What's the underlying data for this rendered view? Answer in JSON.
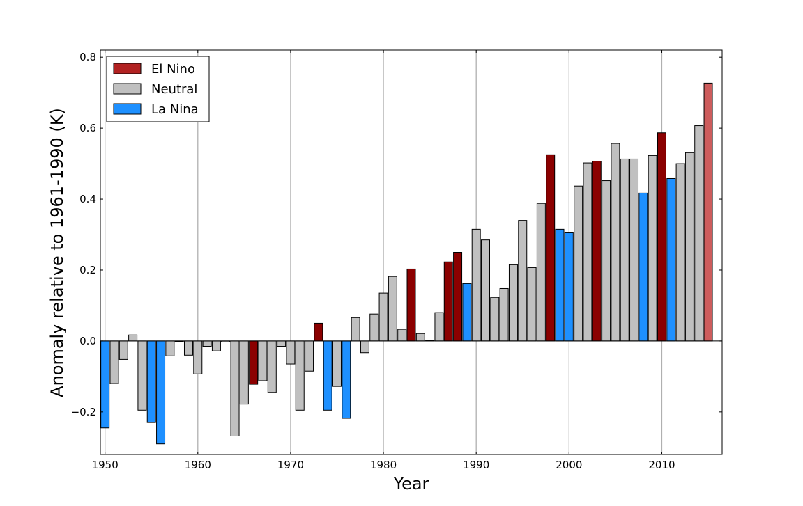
{
  "chart_data": {
    "type": "bar",
    "title": "",
    "xlabel": "Year",
    "ylabel": "Anomaly relative to 1961-1990 (K)",
    "xlim": [
      1949.5,
      2016.5
    ],
    "ylim": [
      -0.32,
      0.82
    ],
    "x_ticks": [
      1950,
      1960,
      1970,
      1980,
      1990,
      2000,
      2010
    ],
    "y_ticks": [
      -0.2,
      0.0,
      0.2,
      0.4,
      0.6,
      0.8
    ],
    "y_tick_labels": [
      "−0.2",
      "0.0",
      "0.2",
      "0.4",
      "0.6",
      "0.8"
    ],
    "x_tick_labels": [
      "1950",
      "1960",
      "1970",
      "1980",
      "1990",
      "2000",
      "2010"
    ],
    "grid": "vertical at x ticks",
    "legend_position": "top-left",
    "legend": [
      {
        "key": "el_nino",
        "label": "El Nino",
        "color": "#b22222"
      },
      {
        "key": "neutral",
        "label": "Neutral",
        "color": "#c0c0c0"
      },
      {
        "key": "la_nina",
        "label": "La Nina",
        "color": "#1e90ff"
      }
    ],
    "colors": {
      "el_nino": "#8b0000",
      "neutral": "#c0c0c0",
      "la_nina": "#1e90ff",
      "highlight": "#cd5c5c"
    },
    "bars": [
      {
        "year": 1950,
        "value": -0.245,
        "phase": "la_nina"
      },
      {
        "year": 1951,
        "value": -0.12,
        "phase": "neutral"
      },
      {
        "year": 1952,
        "value": -0.052,
        "phase": "neutral"
      },
      {
        "year": 1953,
        "value": 0.017,
        "phase": "neutral"
      },
      {
        "year": 1954,
        "value": -0.195,
        "phase": "neutral"
      },
      {
        "year": 1955,
        "value": -0.23,
        "phase": "la_nina"
      },
      {
        "year": 1956,
        "value": -0.29,
        "phase": "la_nina"
      },
      {
        "year": 1957,
        "value": -0.042,
        "phase": "neutral"
      },
      {
        "year": 1958,
        "value": -0.002,
        "phase": "neutral"
      },
      {
        "year": 1959,
        "value": -0.04,
        "phase": "neutral"
      },
      {
        "year": 1960,
        "value": -0.093,
        "phase": "neutral"
      },
      {
        "year": 1961,
        "value": -0.015,
        "phase": "neutral"
      },
      {
        "year": 1962,
        "value": -0.028,
        "phase": "neutral"
      },
      {
        "year": 1963,
        "value": -0.003,
        "phase": "neutral"
      },
      {
        "year": 1964,
        "value": -0.268,
        "phase": "neutral"
      },
      {
        "year": 1965,
        "value": -0.178,
        "phase": "neutral"
      },
      {
        "year": 1966,
        "value": -0.122,
        "phase": "el_nino"
      },
      {
        "year": 1967,
        "value": -0.112,
        "phase": "neutral"
      },
      {
        "year": 1968,
        "value": -0.145,
        "phase": "neutral"
      },
      {
        "year": 1969,
        "value": -0.015,
        "phase": "neutral"
      },
      {
        "year": 1970,
        "value": -0.065,
        "phase": "neutral"
      },
      {
        "year": 1971,
        "value": -0.195,
        "phase": "neutral"
      },
      {
        "year": 1972,
        "value": -0.085,
        "phase": "neutral"
      },
      {
        "year": 1973,
        "value": 0.05,
        "phase": "el_nino"
      },
      {
        "year": 1974,
        "value": -0.195,
        "phase": "la_nina"
      },
      {
        "year": 1975,
        "value": -0.128,
        "phase": "neutral"
      },
      {
        "year": 1976,
        "value": -0.218,
        "phase": "la_nina"
      },
      {
        "year": 1977,
        "value": 0.066,
        "phase": "neutral"
      },
      {
        "year": 1978,
        "value": -0.033,
        "phase": "neutral"
      },
      {
        "year": 1979,
        "value": 0.076,
        "phase": "neutral"
      },
      {
        "year": 1980,
        "value": 0.135,
        "phase": "neutral"
      },
      {
        "year": 1981,
        "value": 0.182,
        "phase": "neutral"
      },
      {
        "year": 1982,
        "value": 0.033,
        "phase": "neutral"
      },
      {
        "year": 1983,
        "value": 0.203,
        "phase": "el_nino"
      },
      {
        "year": 1984,
        "value": 0.021,
        "phase": "neutral"
      },
      {
        "year": 1985,
        "value": 0.002,
        "phase": "neutral"
      },
      {
        "year": 1986,
        "value": 0.08,
        "phase": "neutral"
      },
      {
        "year": 1987,
        "value": 0.223,
        "phase": "el_nino"
      },
      {
        "year": 1988,
        "value": 0.25,
        "phase": "el_nino"
      },
      {
        "year": 1989,
        "value": 0.162,
        "phase": "la_nina"
      },
      {
        "year": 1990,
        "value": 0.315,
        "phase": "neutral"
      },
      {
        "year": 1991,
        "value": 0.285,
        "phase": "neutral"
      },
      {
        "year": 1992,
        "value": 0.123,
        "phase": "neutral"
      },
      {
        "year": 1993,
        "value": 0.148,
        "phase": "neutral"
      },
      {
        "year": 1994,
        "value": 0.215,
        "phase": "neutral"
      },
      {
        "year": 1995,
        "value": 0.34,
        "phase": "neutral"
      },
      {
        "year": 1996,
        "value": 0.207,
        "phase": "neutral"
      },
      {
        "year": 1997,
        "value": 0.388,
        "phase": "neutral"
      },
      {
        "year": 1998,
        "value": 0.525,
        "phase": "el_nino"
      },
      {
        "year": 1999,
        "value": 0.315,
        "phase": "la_nina"
      },
      {
        "year": 2000,
        "value": 0.305,
        "phase": "la_nina"
      },
      {
        "year": 2001,
        "value": 0.437,
        "phase": "neutral"
      },
      {
        "year": 2002,
        "value": 0.502,
        "phase": "neutral"
      },
      {
        "year": 2003,
        "value": 0.507,
        "phase": "el_nino"
      },
      {
        "year": 2004,
        "value": 0.452,
        "phase": "neutral"
      },
      {
        "year": 2005,
        "value": 0.557,
        "phase": "neutral"
      },
      {
        "year": 2006,
        "value": 0.513,
        "phase": "neutral"
      },
      {
        "year": 2007,
        "value": 0.513,
        "phase": "neutral"
      },
      {
        "year": 2008,
        "value": 0.417,
        "phase": "la_nina"
      },
      {
        "year": 2009,
        "value": 0.523,
        "phase": "neutral"
      },
      {
        "year": 2010,
        "value": 0.587,
        "phase": "el_nino"
      },
      {
        "year": 2011,
        "value": 0.458,
        "phase": "la_nina"
      },
      {
        "year": 2012,
        "value": 0.5,
        "phase": "neutral"
      },
      {
        "year": 2013,
        "value": 0.531,
        "phase": "neutral"
      },
      {
        "year": 2014,
        "value": 0.607,
        "phase": "neutral"
      },
      {
        "year": 2015,
        "value": 0.727,
        "phase": "highlight"
      }
    ]
  }
}
